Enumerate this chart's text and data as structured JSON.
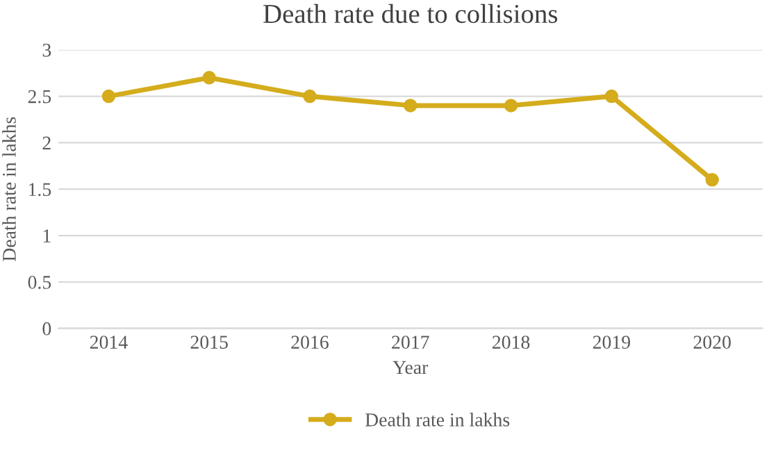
{
  "chart_data": {
    "type": "line",
    "title": "Death rate due to collisions",
    "xlabel": "Year",
    "ylabel": "Death rate in lakhs",
    "categories": [
      "2014",
      "2015",
      "2016",
      "2017",
      "2018",
      "2019",
      "2020"
    ],
    "series": [
      {
        "name": "Death rate in lakhs",
        "color": "#d4ac1c",
        "values": [
          2.5,
          2.7,
          2.5,
          2.4,
          2.4,
          2.5,
          1.6
        ]
      }
    ],
    "ylim": [
      0,
      3
    ],
    "yticks": [
      0,
      0.5,
      1,
      1.5,
      2,
      2.5,
      3
    ],
    "grid": "y",
    "legend": "bottom",
    "marker": "circle",
    "line_style": "solid"
  }
}
